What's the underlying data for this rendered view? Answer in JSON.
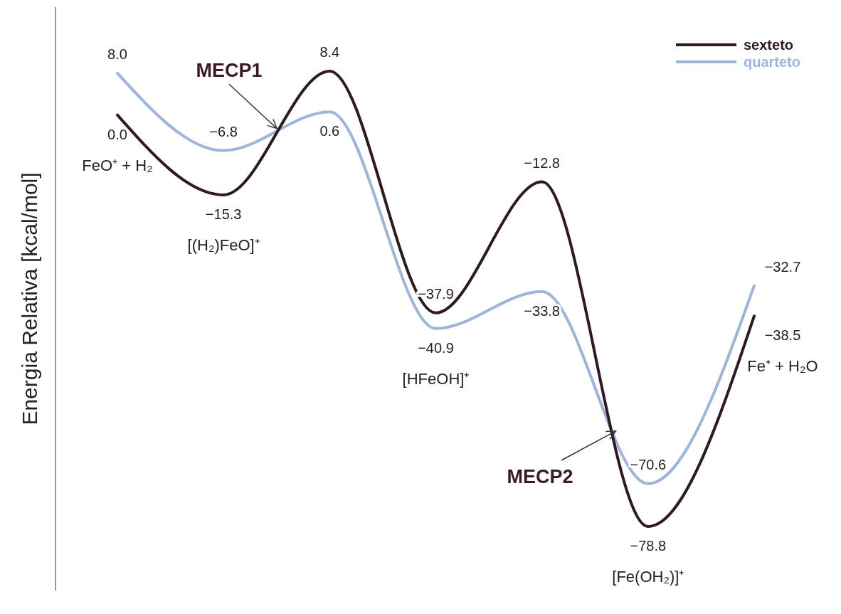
{
  "chart_data": {
    "type": "line",
    "ylabel": "Energia Relativa [kcal/mol]",
    "categories": [
      null,
      null,
      null,
      null,
      null,
      null,
      null
    ],
    "legend": "top right",
    "marker": "none",
    "line_style": "solid",
    "series": [
      {
        "name": "sexteto",
        "color": "#2e1a22",
        "values": [
          0.0,
          -15.3,
          8.4,
          -37.9,
          -12.8,
          -78.8,
          -38.5
        ],
        "value_labels": [
          "0.0",
          "−15.3",
          "8.4",
          "−37.9",
          "−12.8",
          "−78.8",
          "−38.5"
        ]
      },
      {
        "name": "quarteto",
        "color": "#9db5d8",
        "values": [
          8.0,
          -6.8,
          0.6,
          -40.9,
          -33.8,
          -70.6,
          -32.7
        ],
        "value_labels": [
          "8.0",
          "−6.8",
          "0.6",
          "−40.9",
          "−33.8",
          "−70.6",
          "−32.7"
        ]
      }
    ],
    "annotations": [
      "MECP1",
      "MECP2",
      "FeO⁺ + H₂",
      "[(H₂)FeO]⁺",
      "[HFeOH]⁺",
      "[Fe(OH₂)]⁺",
      "Fe⁺ + H₂O"
    ]
  }
}
